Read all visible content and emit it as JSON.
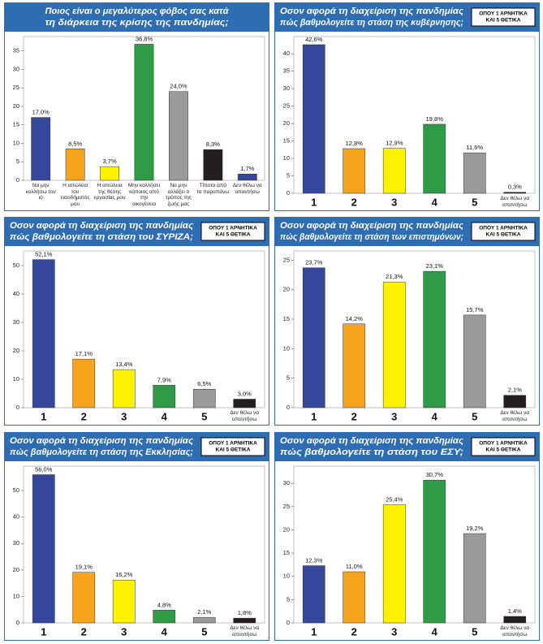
{
  "chart_data": [
    {
      "type": "bar",
      "title": [
        "Ποιος είναι ο μεγαλύτερος φόβος σας κατά",
        "τη διάρκεια της κρίσης της πανδημίας;"
      ],
      "categories": [
        "Να μην κολλήσω τον ιό",
        "Η απώλεια του εισοδήματός μου",
        "Η απώλεια της θέσης εργασίας μου",
        "Μην κολλήσει κάποιος από την οικογένεια",
        "Να μην αλλάξει ο τρόπος της ζωής μας",
        "Τίποτα από τα παραπάνω",
        "Δεν θέλω να απαντήσω"
      ],
      "values": [
        17.0,
        8.5,
        3.7,
        36.8,
        24.0,
        8.3,
        1.7
      ],
      "value_labels": [
        "17,0%",
        "8,5%",
        "3,7%",
        "36,8%",
        "24,0%",
        "8,3%",
        "1,7%"
      ],
      "colors": [
        "#34479b",
        "#f7a41d",
        "#fff200",
        "#2f9b47",
        "#9a9a9a",
        "#231f20",
        "#34479b"
      ],
      "ylim": [
        0,
        38
      ],
      "yticks": [
        0,
        5,
        10,
        15,
        20,
        25,
        30,
        35
      ]
    },
    {
      "type": "bar",
      "title": [
        "Οσον αφορά τη διαχείριση της πανδημίας",
        "πώς βαθμολογείτε τη στάση της κυβέρνησης;"
      ],
      "note": [
        "ΟΠΟΥ 1 ΑΡΝΗΤΙΚΑ",
        "ΚΑΙ 5 ΘΕΤΙΚΑ"
      ],
      "categories": [
        "1",
        "2",
        "3",
        "4",
        "5",
        "Δεν θέλω να απαντήσω"
      ],
      "values": [
        42.6,
        12.8,
        12.9,
        19.8,
        11.6,
        0.3
      ],
      "value_labels": [
        "42,6%",
        "12,8%",
        "12,9%",
        "19,8%",
        "11,6%",
        "0,3%"
      ],
      "colors": [
        "#34479b",
        "#f7a41d",
        "#fff200",
        "#2f9b47",
        "#9a9a9a",
        "#231f20"
      ],
      "ylim": [
        0,
        44
      ],
      "yticks": [
        0,
        5,
        10,
        15,
        20,
        25,
        30,
        35,
        40
      ]
    },
    {
      "type": "bar",
      "title": [
        "Οσον αφορά τη διαχείριση της πανδημίας",
        "πώς βαθμολογείτε τη στάση του ΣΥΡΙΖΑ;"
      ],
      "note": [
        "ΟΠΟΥ 1 ΑΡΝΗΤΙΚΑ",
        "ΚΑΙ 5 ΘΕΤΙΚΑ"
      ],
      "categories": [
        "1",
        "2",
        "3",
        "4",
        "5",
        "Δεν θέλω να απαντήσω"
      ],
      "values": [
        52.1,
        17.1,
        13.4,
        7.9,
        6.5,
        3.0
      ],
      "value_labels": [
        "52,1%",
        "17,1%",
        "13,4%",
        "7,9%",
        "6,5%",
        "3,0%"
      ],
      "colors": [
        "#34479b",
        "#f7a41d",
        "#fff200",
        "#2f9b47",
        "#9a9a9a",
        "#231f20"
      ],
      "ylim": [
        0,
        54
      ],
      "yticks": [
        0,
        10,
        20,
        30,
        40,
        50
      ]
    },
    {
      "type": "bar",
      "title": [
        "Οσον αφορά τη διαχείριση της πανδημίας",
        "πώς βαθμολογείτε τη στάση των επιστημόνων;"
      ],
      "note": [
        "ΟΠΟΥ 1 ΑΡΝΗΤΙΚΑ",
        "ΚΑΙ 5 ΘΕΤΙΚΑ"
      ],
      "categories": [
        "1",
        "2",
        "3",
        "4",
        "5",
        "Δεν θέλω να απαντήσω"
      ],
      "values": [
        23.7,
        14.2,
        21.3,
        23.1,
        15.7,
        2.1
      ],
      "value_labels": [
        "23,7%",
        "14,2%",
        "21,3%",
        "23,1%",
        "15,7%",
        "2,1%"
      ],
      "colors": [
        "#34479b",
        "#f7a41d",
        "#fff200",
        "#2f9b47",
        "#9a9a9a",
        "#231f20"
      ],
      "ylim": [
        0,
        26
      ],
      "yticks": [
        0,
        5,
        10,
        15,
        20,
        25
      ]
    },
    {
      "type": "bar",
      "title": [
        "Οσον αφορά τη διαχείριση της πανδημίας",
        "πώς βαθμολογείτε τη στάση της Εκκλησίας;"
      ],
      "note": [
        "ΟΠΟΥ 1 ΑΡΝΗΤΙΚΑ",
        "ΚΑΙ 5 ΘΕΤΙΚΑ"
      ],
      "categories": [
        "1",
        "2",
        "3",
        "4",
        "5",
        "Δεν θέλω να απαντήσω"
      ],
      "values": [
        56.0,
        19.1,
        16.2,
        4.8,
        2.1,
        1.8
      ],
      "value_labels": [
        "56,0%",
        "19,1%",
        "16,2%",
        "4,8%",
        "2,1%",
        "1,8%"
      ],
      "colors": [
        "#34479b",
        "#f7a41d",
        "#fff200",
        "#2f9b47",
        "#9a9a9a",
        "#231f20"
      ],
      "ylim": [
        0,
        58
      ],
      "yticks": [
        0,
        10,
        20,
        30,
        40,
        50
      ]
    },
    {
      "type": "bar",
      "title": [
        "Οσον αφορά τη διαχείριση της πανδημίας",
        "πώς βαθμολογείτε τη στάση του ΕΣΥ;"
      ],
      "note": [
        "ΟΠΟΥ 1 ΑΡΝΗΤΙΚΑ",
        "ΚΑΙ 5 ΘΕΤΙΚΑ"
      ],
      "categories": [
        "1",
        "2",
        "3",
        "4",
        "5",
        "Δεν θέλω να απαντήσω"
      ],
      "values": [
        12.3,
        11.0,
        25.4,
        30.7,
        19.2,
        1.4
      ],
      "value_labels": [
        "12,3%",
        "11,0%",
        "25,4%",
        "30,7%",
        "19,2%",
        "1,4%"
      ],
      "colors": [
        "#34479b",
        "#f7a41d",
        "#fff200",
        "#2f9b47",
        "#9a9a9a",
        "#231f20"
      ],
      "ylim": [
        0,
        33
      ],
      "yticks": [
        0,
        5,
        10,
        15,
        20,
        25,
        30
      ]
    }
  ]
}
